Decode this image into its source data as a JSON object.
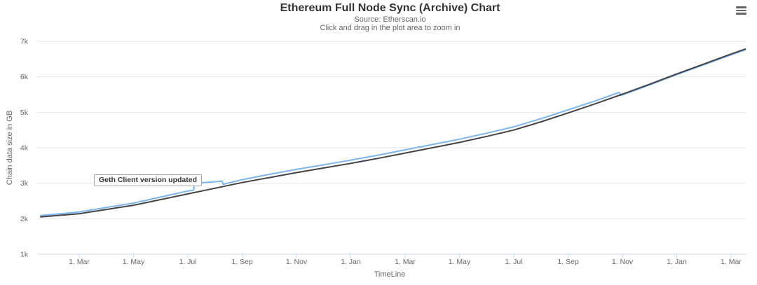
{
  "header": {
    "title": "Ethereum Full Node Sync (Archive) Chart",
    "subtitle_source": "Source: Etherscan.io",
    "subtitle_hint": "Click and drag in the plot area to zoom in"
  },
  "context_menu": {
    "icon": "hamburger-menu-icon"
  },
  "annotation": {
    "label": "Geth Client version updated"
  },
  "colors": {
    "series_light_blue": "#7cb5ec",
    "series_dark": "#434348",
    "gridline": "#e6e6e6",
    "axis_line": "#ccd6eb",
    "tick_label": "#666666",
    "title_text": "#333333",
    "subtitle_text": "#666666",
    "annotation_border": "#a3a3a3"
  },
  "chart_data": {
    "type": "line",
    "title": "Ethereum Full Node Sync (Archive) Chart",
    "subtitle": [
      "Source: Etherscan.io",
      "Click and drag in the plot area to zoom in"
    ],
    "xlabel": "TimeLine",
    "ylabel": "Chain data size in GB",
    "y_unit": "GB, labels shown in thousands (k)",
    "ylim_k": [
      1,
      7
    ],
    "grid": "horizontal gridlines only, no legend",
    "yticks": [
      {
        "value": 1,
        "label": "1k"
      },
      {
        "value": 2,
        "label": "2k"
      },
      {
        "value": 3,
        "label": "3k"
      },
      {
        "value": 4,
        "label": "4k"
      },
      {
        "value": 5,
        "label": "5k"
      },
      {
        "value": 6,
        "label": "6k"
      },
      {
        "value": 7,
        "label": "7k"
      }
    ],
    "xticks": [
      {
        "m": 2,
        "label": "1. Mar"
      },
      {
        "m": 4,
        "label": "1. May"
      },
      {
        "m": 6,
        "label": "1. Jul"
      },
      {
        "m": 8,
        "label": "1. Sep"
      },
      {
        "m": 10,
        "label": "1. Nov"
      },
      {
        "m": 12,
        "label": "1. Jan"
      },
      {
        "m": 14,
        "label": "1. Mar"
      },
      {
        "m": 16,
        "label": "1. May"
      },
      {
        "m": 18,
        "label": "1. Jul"
      },
      {
        "m": 20,
        "label": "1. Sep"
      },
      {
        "m": 22,
        "label": "1. Nov"
      },
      {
        "m": 24,
        "label": "1. Jan"
      },
      {
        "m": 26,
        "label": "1. Mar"
      }
    ],
    "series": [
      {
        "name": "archive-sync-light-blue",
        "color": "#7cb5ec",
        "note": "steps up ~+190GB in early July (Geth client version update), small step back down, rejoins dark line in late Oct of year 2",
        "points": [
          [
            0.58,
            2.09
          ],
          [
            2,
            2.19
          ],
          [
            4,
            2.44
          ],
          [
            6,
            2.78
          ],
          [
            6.22,
            2.81
          ],
          [
            6.23,
            3.0
          ],
          [
            6.8,
            3.03
          ],
          [
            7.26,
            3.06
          ],
          [
            7.3,
            2.97
          ],
          [
            8,
            3.1
          ],
          [
            9,
            3.25
          ],
          [
            10,
            3.39
          ],
          [
            11,
            3.52
          ],
          [
            12,
            3.65
          ],
          [
            13,
            3.79
          ],
          [
            14,
            3.94
          ],
          [
            15,
            4.09
          ],
          [
            16,
            4.24
          ],
          [
            17,
            4.41
          ],
          [
            18,
            4.59
          ],
          [
            19,
            4.82
          ],
          [
            20,
            5.07
          ],
          [
            21,
            5.32
          ],
          [
            21.88,
            5.56
          ],
          [
            21.95,
            5.47
          ],
          [
            22,
            5.49
          ],
          [
            23,
            5.77
          ],
          [
            24,
            6.06
          ],
          [
            25,
            6.34
          ],
          [
            26,
            6.62
          ],
          [
            26.52,
            6.76
          ]
        ]
      },
      {
        "name": "archive-sync-dark",
        "color": "#434348",
        "points": [
          [
            0.58,
            2.05
          ],
          [
            2,
            2.14
          ],
          [
            4,
            2.38
          ],
          [
            6,
            2.7
          ],
          [
            7,
            2.86
          ],
          [
            8,
            3.02
          ],
          [
            9,
            3.16
          ],
          [
            10,
            3.3
          ],
          [
            11,
            3.43
          ],
          [
            12,
            3.56
          ],
          [
            13,
            3.7
          ],
          [
            14,
            3.85
          ],
          [
            15,
            4.0
          ],
          [
            16,
            4.15
          ],
          [
            17,
            4.32
          ],
          [
            18,
            4.5
          ],
          [
            19,
            4.73
          ],
          [
            20,
            4.98
          ],
          [
            21,
            5.24
          ],
          [
            22,
            5.51
          ],
          [
            23,
            5.79
          ],
          [
            24,
            6.08
          ],
          [
            25,
            6.36
          ],
          [
            26,
            6.64
          ],
          [
            26.52,
            6.78
          ]
        ]
      }
    ],
    "annotations": [
      {
        "text": "Geth Client version updated",
        "attach": {
          "m": 6.23,
          "value_k": 3.0
        }
      }
    ]
  }
}
